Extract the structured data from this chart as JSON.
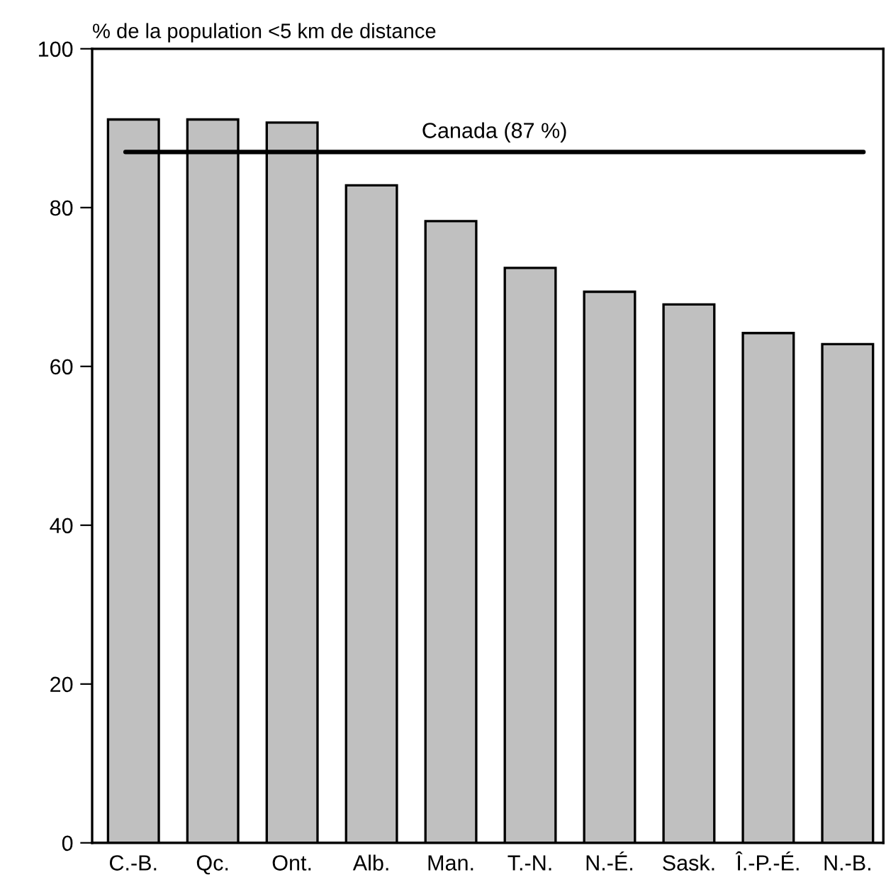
{
  "chart_data": {
    "type": "bar",
    "ylabel": "% de la population <5 km de distance",
    "categories": [
      "C.-B.",
      "Qc.",
      "Ont.",
      "Alb.",
      "Man.",
      "T.-N.",
      "N.-É.",
      "Sask.",
      "Î.-P.-É.",
      "N.-B."
    ],
    "values": [
      91.1,
      91.1,
      90.7,
      82.8,
      78.3,
      72.4,
      69.4,
      67.8,
      64.2,
      62.8
    ],
    "color": "#c0c0c0",
    "ylim": [
      0,
      100
    ],
    "yticks": [
      0,
      20,
      40,
      60,
      80,
      100
    ],
    "grid": false,
    "ref_lines": [
      {
        "axis": "y",
        "value": 87,
        "label": "Canada (87 %)",
        "color": "#000000"
      }
    ]
  }
}
